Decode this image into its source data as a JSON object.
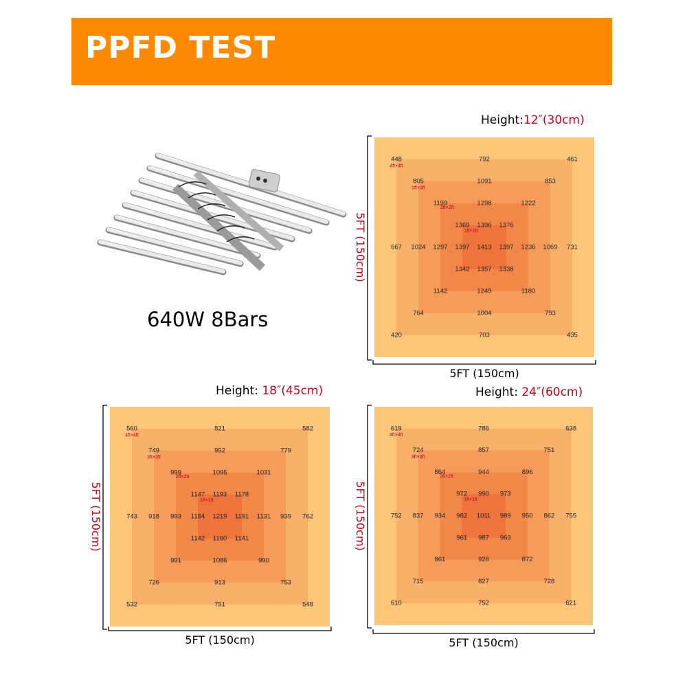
{
  "header": {
    "title": "PPFD TEST",
    "color": "#ff8a00"
  },
  "product": {
    "caption": "640W 8Bars",
    "icon": "led-grow-light-bars"
  },
  "colors": {
    "ring1": "#fbc57a",
    "ring2": "#f8b16a",
    "ring3": "#f59c5a",
    "ring4": "#f2874a",
    "core": "#ee733c",
    "accent": "#c0001a"
  },
  "zone_labels": [
    "4ft×4ft",
    "3ft×3ft",
    "2ft×2ft",
    "1ft×1ft"
  ],
  "grids": [
    {
      "id": "h12",
      "height_prefix": "Height:",
      "height_value": "12″(30cm)",
      "x_dim": "5FT (150cm)",
      "y_dim": "5FT (150cm)",
      "rows": [
        [
          "448",
          "",
          "",
          "",
          "792",
          "",
          "",
          "",
          "461"
        ],
        [
          "",
          "805",
          "",
          "",
          "1091",
          "",
          "",
          "853",
          ""
        ],
        [
          "",
          "",
          "1199",
          "",
          "1298",
          "",
          "1222",
          "",
          ""
        ],
        [
          "",
          "",
          "",
          "1369",
          "1396",
          "1376",
          "",
          "",
          ""
        ],
        [
          "667",
          "1024",
          "1297",
          "1397",
          "1413",
          "1397",
          "1236",
          "1069",
          "731"
        ],
        [
          "",
          "",
          "",
          "1342",
          "1357",
          "1338",
          "",
          "",
          ""
        ],
        [
          "",
          "",
          "1142",
          "",
          "1249",
          "",
          "1180",
          "",
          ""
        ],
        [
          "",
          "764",
          "",
          "",
          "1004",
          "",
          "",
          "793",
          ""
        ],
        [
          "420",
          "",
          "",
          "",
          "703",
          "",
          "",
          "",
          "435"
        ]
      ]
    },
    {
      "id": "h18",
      "height_prefix": "Height: ",
      "height_value": "18″(45cm)",
      "x_dim": "5FT (150cm)",
      "y_dim": "5FT (150cm)",
      "rows": [
        [
          "560",
          "",
          "",
          "",
          "821",
          "",
          "",
          "",
          "582"
        ],
        [
          "",
          "749",
          "",
          "",
          "952",
          "",
          "",
          "779",
          ""
        ],
        [
          "",
          "",
          "999",
          "",
          "1095",
          "",
          "1031",
          "",
          ""
        ],
        [
          "",
          "",
          "",
          "1147",
          "1193",
          "1178",
          "",
          "",
          ""
        ],
        [
          "743",
          "918",
          "993",
          "1184",
          "1219",
          "1191",
          "1131",
          "939",
          "762"
        ],
        [
          "",
          "",
          "",
          "1142",
          "1160",
          "1141",
          "",
          "",
          ""
        ],
        [
          "",
          "",
          "991",
          "",
          "1086",
          "",
          "990",
          "",
          ""
        ],
        [
          "",
          "726",
          "",
          "",
          "913",
          "",
          "",
          "753",
          ""
        ],
        [
          "532",
          "",
          "",
          "",
          "751",
          "",
          "",
          "",
          "548"
        ]
      ]
    },
    {
      "id": "h24",
      "height_prefix": "Height: ",
      "height_value": "24″(60cm)",
      "x_dim": "5FT (150cm)",
      "y_dim": "5FT (150cm)",
      "rows": [
        [
          "619",
          "",
          "",
          "",
          "786",
          "",
          "",
          "",
          "638"
        ],
        [
          "",
          "724",
          "",
          "",
          "857",
          "",
          "",
          "751",
          ""
        ],
        [
          "",
          "",
          "864",
          "",
          "944",
          "",
          "896",
          "",
          ""
        ],
        [
          "",
          "",
          "",
          "972",
          "990",
          "973",
          "",
          "",
          ""
        ],
        [
          "752",
          "837",
          "934",
          "982",
          "1011",
          "989",
          "950",
          "862",
          "755"
        ],
        [
          "",
          "",
          "",
          "961",
          "987",
          "963",
          "",
          "",
          ""
        ],
        [
          "",
          "",
          "861",
          "",
          "928",
          "",
          "872",
          "",
          ""
        ],
        [
          "",
          "715",
          "",
          "",
          "827",
          "",
          "",
          "728",
          ""
        ],
        [
          "610",
          "",
          "",
          "",
          "752",
          "",
          "",
          "",
          "621"
        ]
      ]
    }
  ]
}
